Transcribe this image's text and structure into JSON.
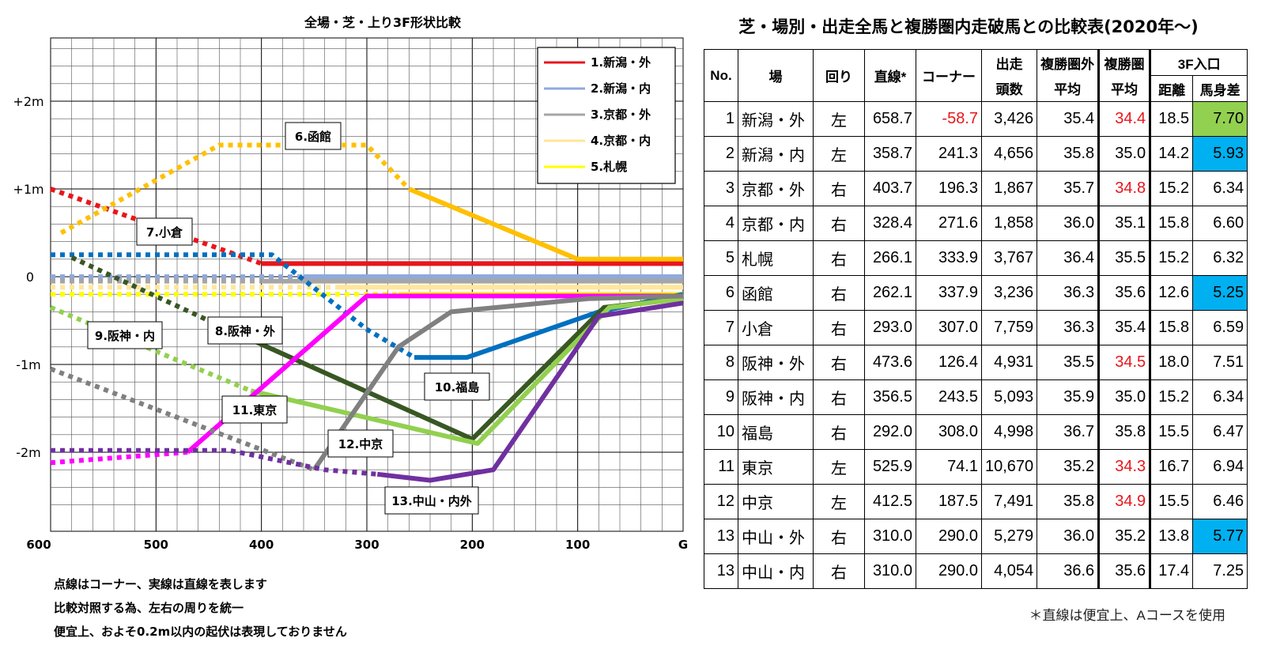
{
  "chart_data": {
    "type": "line",
    "title": "全場・芝・上り3F形状比較",
    "x_tick_labels": [
      "600",
      "500",
      "400",
      "300",
      "200",
      "100",
      "G"
    ],
    "y_tick_labels": [
      "+2m",
      "+1m",
      "0",
      "-1m",
      "-2m"
    ],
    "xlim": [
      600,
      0
    ],
    "ylim": [
      -2.6,
      2.75
    ],
    "grid": true,
    "legend_position": "top-right",
    "legend": [
      "1.新潟・外",
      "2.新潟・内",
      "3.京都・外",
      "4.京都・内",
      "5.札幌"
    ],
    "series": [
      {
        "name": "1.新潟・外",
        "color": "#e8161b",
        "segments": [
          {
            "style": "dotted",
            "points": [
              [
                600,
                1.0
              ],
              [
                400,
                0.15
              ]
            ]
          },
          {
            "style": "solid",
            "points": [
              [
                400,
                0.15
              ],
              [
                0,
                0.15
              ]
            ]
          }
        ]
      },
      {
        "name": "2.新潟・内",
        "color": "#8faadc",
        "segments": [
          {
            "style": "dotted",
            "points": [
              [
                600,
                0.0
              ],
              [
                360,
                0.0
              ]
            ]
          },
          {
            "style": "solid",
            "points": [
              [
                360,
                0.0
              ],
              [
                0,
                0.0
              ]
            ]
          }
        ]
      },
      {
        "name": "3.京都・外",
        "color": "#a6a6a6",
        "segments": [
          {
            "style": "dotted",
            "points": [
              [
                600,
                -0.05
              ],
              [
                400,
                -0.05
              ]
            ]
          },
          {
            "style": "solid",
            "points": [
              [
                400,
                -0.05
              ],
              [
                0,
                -0.05
              ]
            ]
          }
        ]
      },
      {
        "name": "4.京都・内",
        "color": "#ffe699",
        "segments": [
          {
            "style": "dotted",
            "points": [
              [
                600,
                -0.12
              ],
              [
                330,
                -0.12
              ]
            ]
          },
          {
            "style": "solid",
            "points": [
              [
                330,
                -0.12
              ],
              [
                0,
                -0.12
              ]
            ]
          }
        ]
      },
      {
        "name": "5.札幌",
        "color": "#ffff00",
        "segments": [
          {
            "style": "dotted",
            "points": [
              [
                600,
                -0.2
              ],
              [
                270,
                -0.2
              ]
            ]
          },
          {
            "style": "solid",
            "points": [
              [
                270,
                -0.2
              ],
              [
                0,
                -0.2
              ]
            ]
          }
        ]
      },
      {
        "name": "6.函館",
        "label": "6.函館",
        "color": "#ffc000",
        "segments": [
          {
            "style": "dotted",
            "points": [
              [
                590,
                0.5
              ],
              [
                440,
                1.5
              ],
              [
                300,
                1.5
              ],
              [
                260,
                1.0
              ]
            ]
          },
          {
            "style": "solid",
            "points": [
              [
                260,
                1.0
              ],
              [
                100,
                0.2
              ],
              [
                0,
                0.2
              ]
            ]
          }
        ]
      },
      {
        "name": "7.小倉",
        "label": "7.小倉",
        "color": "#0070c0",
        "segments": [
          {
            "style": "dotted",
            "points": [
              [
                600,
                0.25
              ],
              [
                390,
                0.25
              ],
              [
                300,
                -0.6
              ],
              [
                255,
                -0.92
              ]
            ]
          },
          {
            "style": "solid",
            "points": [
              [
                255,
                -0.92
              ],
              [
                205,
                -0.92
              ],
              [
                80,
                -0.4
              ],
              [
                0,
                -0.2
              ]
            ]
          }
        ]
      },
      {
        "name": "8.阪神・外",
        "label": "8.阪神・外",
        "color": "#385723",
        "segments": [
          {
            "style": "dotted",
            "points": [
              [
                580,
                0.22
              ],
              [
                450,
                -0.5
              ]
            ]
          },
          {
            "style": "solid",
            "points": [
              [
                450,
                -0.5
              ],
              [
                200,
                -1.85
              ],
              [
                75,
                -0.35
              ],
              [
                0,
                -0.25
              ]
            ]
          }
        ]
      },
      {
        "name": "9.阪神・内",
        "label": "9.阪神・内",
        "color": "#92d050",
        "segments": [
          {
            "style": "dotted",
            "points": [
              [
                600,
                -0.35
              ],
              [
                410,
                -1.3
              ]
            ]
          },
          {
            "style": "solid",
            "points": [
              [
                410,
                -1.3
              ],
              [
                195,
                -1.9
              ],
              [
                70,
                -0.35
              ],
              [
                0,
                -0.25
              ]
            ]
          }
        ]
      },
      {
        "name": "10.福島",
        "label": "10.福島",
        "color": "#0070c0",
        "segments": []
      },
      {
        "name": "11.東京",
        "label": "11.東京",
        "color": "#ff00ff",
        "segments": [
          {
            "style": "dotted",
            "points": [
              [
                600,
                -2.12
              ],
              [
                470,
                -2.0
              ]
            ]
          },
          {
            "style": "solid",
            "points": [
              [
                470,
                -2.0
              ],
              [
                300,
                -0.22
              ],
              [
                0,
                -0.22
              ]
            ]
          }
        ]
      },
      {
        "name": "12.中京",
        "label": "12.中京",
        "color": "#808080",
        "segments": [
          {
            "style": "dotted",
            "points": [
              [
                600,
                -1.05
              ],
              [
                350,
                -2.2
              ]
            ]
          },
          {
            "style": "solid",
            "points": [
              [
                350,
                -2.2
              ],
              [
                270,
                -0.8
              ],
              [
                220,
                -0.4
              ],
              [
                90,
                -0.25
              ],
              [
                0,
                -0.22
              ]
            ]
          }
        ]
      },
      {
        "name": "13.中山・内外",
        "label": "13.中山・内外",
        "color": "#7030a0",
        "segments": [
          {
            "style": "dotted",
            "points": [
              [
                600,
                -1.98
              ],
              [
                430,
                -1.98
              ],
              [
                340,
                -2.2
              ],
              [
                290,
                -2.25
              ]
            ]
          },
          {
            "style": "solid",
            "points": [
              [
                290,
                -2.25
              ],
              [
                240,
                -2.32
              ],
              [
                180,
                -2.2
              ],
              [
                80,
                -0.45
              ],
              [
                0,
                -0.3
              ]
            ]
          }
        ]
      }
    ]
  },
  "notes": [
    "点線はコーナー、実線は直線を表します",
    "比較対照する為、左右の周りを統一",
    "便宜上、およそ0.2m以内の起伏は表現しておりません"
  ],
  "table": {
    "title": "芝・場別・出走全馬と複勝圏内走破馬との比較表(2020年～)",
    "headers": {
      "no": "No.",
      "venue": "場",
      "direction": "回り",
      "straight": "直線*",
      "corner": "コーナー",
      "runners_line1": "出走",
      "runners_line2": "頭数",
      "outside_line1": "複勝圏外",
      "outside_line2": "平均",
      "inside_line1": "複勝圏",
      "inside_line2": "平均",
      "entry_group": "3F入口",
      "distance": "距離",
      "margin": "馬身差"
    },
    "rows": [
      {
        "no": "1",
        "venue": "新潟・外",
        "direction": "左",
        "straight": "658.7",
        "corner": "-58.7",
        "runners": "3,426",
        "outside_avg": "35.4",
        "inside_avg": "34.4",
        "distance": "18.5",
        "margin": "7.70"
      },
      {
        "no": "2",
        "venue": "新潟・内",
        "direction": "左",
        "straight": "358.7",
        "corner": "241.3",
        "runners": "4,656",
        "outside_avg": "35.8",
        "inside_avg": "35.0",
        "distance": "14.2",
        "margin": "5.93"
      },
      {
        "no": "3",
        "venue": "京都・外",
        "direction": "右",
        "straight": "403.7",
        "corner": "196.3",
        "runners": "1,867",
        "outside_avg": "35.7",
        "inside_avg": "34.8",
        "distance": "15.2",
        "margin": "6.34"
      },
      {
        "no": "4",
        "venue": "京都・内",
        "direction": "右",
        "straight": "328.4",
        "corner": "271.6",
        "runners": "1,858",
        "outside_avg": "36.0",
        "inside_avg": "35.1",
        "distance": "15.8",
        "margin": "6.60"
      },
      {
        "no": "5",
        "venue": "札幌",
        "direction": "右",
        "straight": "266.1",
        "corner": "333.9",
        "runners": "3,767",
        "outside_avg": "36.4",
        "inside_avg": "35.5",
        "distance": "15.2",
        "margin": "6.32"
      },
      {
        "no": "6",
        "venue": "函館",
        "direction": "右",
        "straight": "262.1",
        "corner": "337.9",
        "runners": "3,236",
        "outside_avg": "36.3",
        "inside_avg": "35.6",
        "distance": "12.6",
        "margin": "5.25"
      },
      {
        "no": "7",
        "venue": "小倉",
        "direction": "右",
        "straight": "293.0",
        "corner": "307.0",
        "runners": "7,759",
        "outside_avg": "36.3",
        "inside_avg": "35.4",
        "distance": "15.8",
        "margin": "6.59"
      },
      {
        "no": "8",
        "venue": "阪神・外",
        "direction": "右",
        "straight": "473.6",
        "corner": "126.4",
        "runners": "4,931",
        "outside_avg": "35.5",
        "inside_avg": "34.5",
        "distance": "18.0",
        "margin": "7.51"
      },
      {
        "no": "9",
        "venue": "阪神・内",
        "direction": "右",
        "straight": "356.5",
        "corner": "243.5",
        "runners": "5,093",
        "outside_avg": "35.9",
        "inside_avg": "35.0",
        "distance": "15.2",
        "margin": "6.34"
      },
      {
        "no": "10",
        "venue": "福島",
        "direction": "右",
        "straight": "292.0",
        "corner": "308.0",
        "runners": "4,998",
        "outside_avg": "36.7",
        "inside_avg": "35.8",
        "distance": "15.5",
        "margin": "6.47"
      },
      {
        "no": "11",
        "venue": "東京",
        "direction": "左",
        "straight": "525.9",
        "corner": "74.1",
        "runners": "10,670",
        "outside_avg": "35.2",
        "inside_avg": "34.3",
        "distance": "16.7",
        "margin": "6.94"
      },
      {
        "no": "12",
        "venue": "中京",
        "direction": "左",
        "straight": "412.5",
        "corner": "187.5",
        "runners": "7,491",
        "outside_avg": "35.8",
        "inside_avg": "34.9",
        "distance": "15.5",
        "margin": "6.46"
      },
      {
        "no": "13",
        "venue": "中山・外",
        "direction": "右",
        "straight": "310.0",
        "corner": "290.0",
        "runners": "5,279",
        "outside_avg": "36.0",
        "inside_avg": "35.2",
        "distance": "13.8",
        "margin": "5.77"
      },
      {
        "no": "13",
        "venue": "中山・内",
        "direction": "右",
        "straight": "310.0",
        "corner": "290.0",
        "runners": "4,054",
        "outside_avg": "36.6",
        "inside_avg": "35.6",
        "distance": "17.4",
        "margin": "7.25"
      }
    ],
    "red_cells": [
      [
        0,
        "corner"
      ],
      [
        0,
        "inside_avg"
      ],
      [
        2,
        "inside_avg"
      ],
      [
        7,
        "inside_avg"
      ],
      [
        10,
        "inside_avg"
      ],
      [
        11,
        "inside_avg"
      ]
    ],
    "highlight_cells": [
      {
        "row": 0,
        "col": "margin",
        "color": "#92d050"
      },
      {
        "row": 1,
        "col": "margin",
        "color": "#00b0f0"
      },
      {
        "row": 5,
        "col": "margin",
        "color": "#00b0f0"
      },
      {
        "row": 12,
        "col": "margin",
        "color": "#00b0f0"
      }
    ],
    "footnote": "＊直線は便宜上、Aコースを使用"
  }
}
